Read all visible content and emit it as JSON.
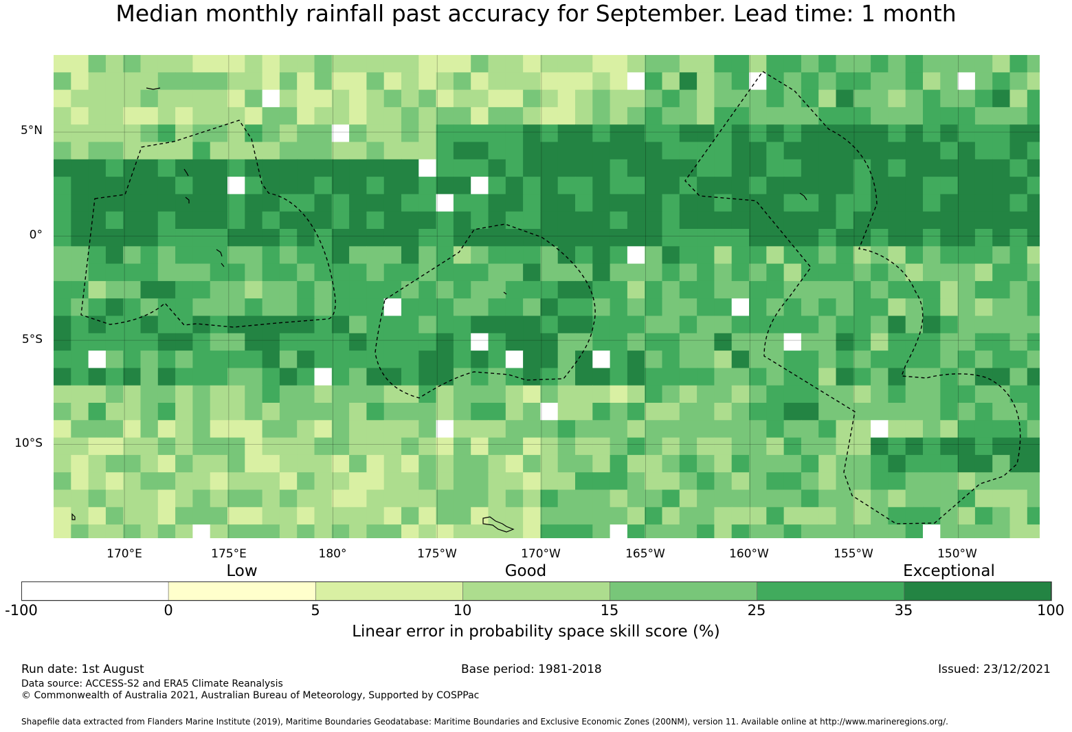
{
  "title": "Median monthly rainfall past accuracy for September. Lead time: 1 month",
  "map": {
    "lat_labels": [
      {
        "text": "5°N",
        "lat": 5
      },
      {
        "text": "0°",
        "lat": 0
      },
      {
        "text": "5°S",
        "lat": -5
      },
      {
        "text": "10°S",
        "lat": -10
      }
    ],
    "lon_labels": [
      {
        "text": "170°E",
        "lon": 170
      },
      {
        "text": "175°E",
        "lon": 175
      },
      {
        "text": "180°",
        "lon": 180
      },
      {
        "text": "175°W",
        "lon": 185
      },
      {
        "text": "170°W",
        "lon": 190
      },
      {
        "text": "165°W",
        "lon": 195
      },
      {
        "text": "160°W",
        "lon": 200
      },
      {
        "text": "155°W",
        "lon": 205
      },
      {
        "text": "150°W",
        "lon": 210
      }
    ],
    "lon_range": [
      166.6,
      213.9
    ],
    "lat_range": [
      -14.5,
      8.7
    ],
    "grid": true
  },
  "colorbar": {
    "category_labels": [
      {
        "text": "Low",
        "value": 2.5
      },
      {
        "text": "Good",
        "value": 12.5
      },
      {
        "text": "Exceptional",
        "value": 30
      }
    ],
    "bounds": [
      "-100",
      "0",
      "5",
      "10",
      "15",
      "25",
      "35",
      "100"
    ],
    "colors": [
      "#ffffff",
      "#ffffcc",
      "#d9f0a3",
      "#addd8e",
      "#78c679",
      "#41ab5d",
      "#238443"
    ],
    "label": "Linear error in probability space skill score (%)"
  },
  "footer": {
    "run_date": "Run date: 1st August",
    "base_period": "Base period: 1981-2018",
    "issued": "Issued: 23/12/2021",
    "data_source": "Data source: ACCESS-S2 and ERA5 Climate Reanalysis",
    "copyright": "© Commonwealth of Australia 2021, Australian Bureau of Meteorology, Supported by COSPPac",
    "shapefile": "Shapefile data extracted from Flanders Marine Institute (2019), Maritime Boundaries Geodatabase: Maritime Boundaries and Exclusive Economic Zones (200NM), version 11. Available online at http://www.marineregions.org/."
  }
}
